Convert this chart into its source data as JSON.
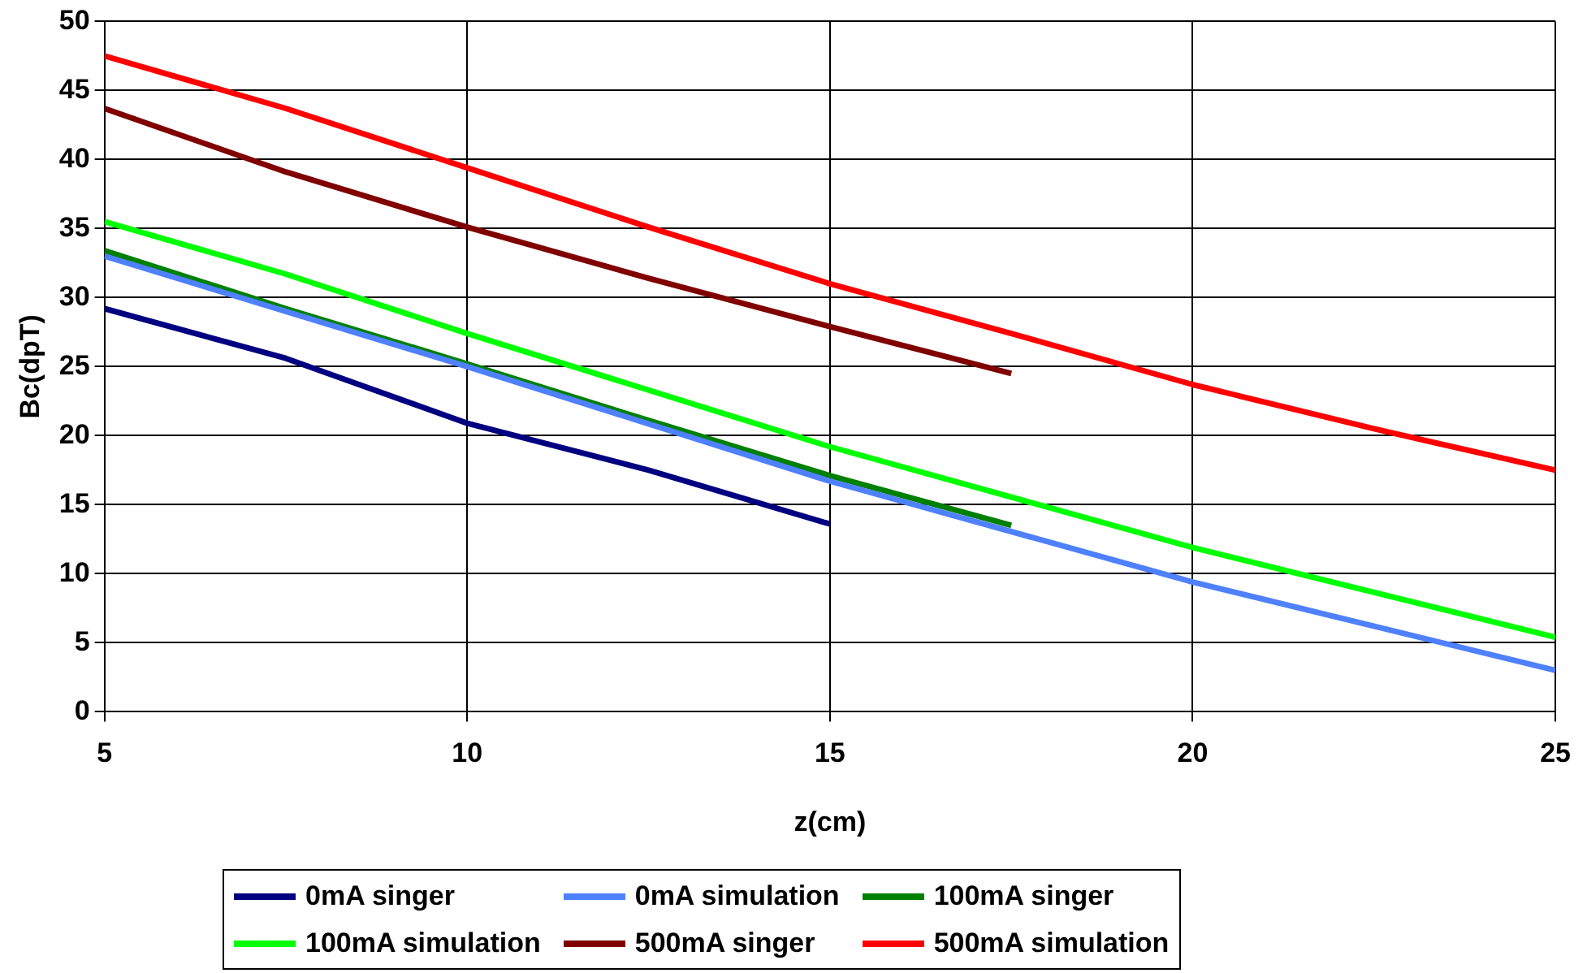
{
  "chart_data": {
    "type": "line",
    "xlabel": "z(cm)",
    "ylabel": "Bc(dpT)",
    "xlim": [
      5,
      25
    ],
    "xticks": [
      5,
      10,
      15,
      20,
      25
    ],
    "ylim": [
      0,
      50
    ],
    "yticks": [
      0,
      5,
      10,
      15,
      20,
      25,
      30,
      35,
      40,
      45,
      50
    ],
    "grid": true,
    "legend": "bottom",
    "marker": "none",
    "line_style": "solid",
    "series": [
      {
        "name": "0mA singer",
        "color": "#000080",
        "x": [
          5,
          7.5,
          10,
          12.5,
          15
        ],
        "values": [
          29.2,
          25.6,
          20.9,
          17.5,
          13.6
        ]
      },
      {
        "name": "0mA simulation",
        "color": "#4f81ff",
        "x": [
          5,
          10,
          15,
          20,
          25
        ],
        "values": [
          33,
          25,
          16.7,
          9.4,
          3
        ]
      },
      {
        "name": "100mA singer",
        "color": "#008000",
        "x": [
          5,
          7.5,
          10,
          12.5,
          15,
          17.5
        ],
        "values": [
          33.4,
          29.2,
          25.2,
          21.1,
          17.1,
          13.5
        ]
      },
      {
        "name": "100mA simulation",
        "color": "#00ff00",
        "x": [
          5,
          7.5,
          10,
          15,
          20,
          25
        ],
        "values": [
          35.5,
          31.7,
          27.4,
          19.2,
          11.9,
          5.4
        ]
      },
      {
        "name": "500mA singer",
        "color": "#800000",
        "x": [
          5,
          7.5,
          10,
          12.5,
          15,
          17.5
        ],
        "values": [
          43.7,
          39.1,
          35.1,
          31.4,
          27.9,
          24.5
        ]
      },
      {
        "name": "500mA simulation",
        "color": "#ff0000",
        "x": [
          5,
          7.5,
          10,
          12.5,
          15,
          17.5,
          20,
          22.5,
          25
        ],
        "values": [
          47.5,
          43.7,
          39.4,
          35.1,
          31,
          27.4,
          23.7,
          20.5,
          17.5
        ]
      }
    ]
  }
}
